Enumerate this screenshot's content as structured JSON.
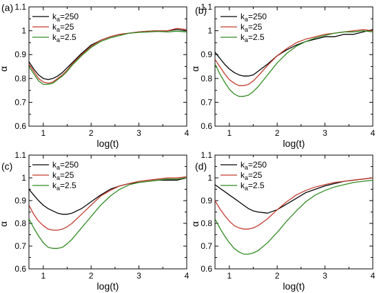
{
  "chart_data": [
    {
      "type": "line",
      "panel_label": "(a)",
      "xlabel": "log(t)",
      "ylabel": "α",
      "xlim": [
        0.7,
        4
      ],
      "ylim": [
        0.6,
        1.1
      ],
      "xticks": [
        "1",
        "2",
        "3",
        "4"
      ],
      "yticks": [
        "0.6",
        "0.7",
        "0.8",
        "0.9",
        "1",
        "1.1"
      ],
      "legend": "top-left",
      "series": [
        {
          "name_prefix": "k",
          "name_sub": "a",
          "name_suffix": "=250",
          "color": "#000000",
          "x": [
            0.7,
            0.8,
            0.9,
            1.0,
            1.1,
            1.2,
            1.3,
            1.4,
            1.5,
            1.6,
            1.8,
            2.0,
            2.2,
            2.4,
            2.6,
            2.8,
            3.0,
            3.2,
            3.4,
            3.6,
            3.8,
            4.0
          ],
          "y": [
            0.87,
            0.84,
            0.815,
            0.8,
            0.795,
            0.8,
            0.81,
            0.825,
            0.845,
            0.865,
            0.905,
            0.94,
            0.96,
            0.975,
            0.985,
            0.99,
            0.995,
            0.998,
            1.0,
            1.0,
            1.005,
            1.0
          ]
        },
        {
          "name_prefix": "k",
          "name_sub": "a",
          "name_suffix": "=25",
          "color": "#c0392b",
          "x": [
            0.7,
            0.8,
            0.9,
            1.0,
            1.1,
            1.2,
            1.3,
            1.4,
            1.5,
            1.6,
            1.8,
            2.0,
            2.2,
            2.4,
            2.6,
            2.8,
            3.0,
            3.2,
            3.4,
            3.6,
            3.8,
            4.0
          ],
          "y": [
            0.86,
            0.83,
            0.8,
            0.785,
            0.78,
            0.785,
            0.8,
            0.815,
            0.835,
            0.86,
            0.9,
            0.935,
            0.96,
            0.975,
            0.985,
            0.99,
            0.995,
            0.998,
            1.0,
            1.0,
            1.01,
            1.005
          ]
        },
        {
          "name_prefix": "k",
          "name_sub": "a",
          "name_suffix": "=2.5",
          "color": "#2e8b1f",
          "x": [
            0.7,
            0.8,
            0.9,
            1.0,
            1.1,
            1.2,
            1.3,
            1.4,
            1.5,
            1.6,
            1.8,
            2.0,
            2.2,
            2.4,
            2.6,
            2.8,
            3.0,
            3.2,
            3.4,
            3.6,
            3.8,
            4.0
          ],
          "y": [
            0.85,
            0.82,
            0.79,
            0.775,
            0.775,
            0.78,
            0.795,
            0.81,
            0.83,
            0.855,
            0.895,
            0.93,
            0.955,
            0.97,
            0.98,
            0.99,
            0.993,
            0.995,
            0.997,
            0.995,
            0.998,
            0.995
          ]
        }
      ]
    },
    {
      "type": "line",
      "panel_label": "(b)",
      "xlabel": "log(t)",
      "ylabel": "α",
      "xlim": [
        0.7,
        4
      ],
      "ylim": [
        0.6,
        1.1
      ],
      "xticks": [
        "1",
        "2",
        "3",
        "4"
      ],
      "yticks": [
        "0.6",
        "0.7",
        "0.8",
        "0.9",
        "1",
        "1.1"
      ],
      "legend": "top-right",
      "series": [
        {
          "name_prefix": "k",
          "name_sub": "a",
          "name_suffix": "=250",
          "color": "#000000",
          "x": [
            0.7,
            0.8,
            0.9,
            1.0,
            1.1,
            1.2,
            1.3,
            1.4,
            1.5,
            1.6,
            1.8,
            2.0,
            2.2,
            2.4,
            2.6,
            2.8,
            3.0,
            3.2,
            3.4,
            3.6,
            3.8,
            4.0
          ],
          "y": [
            0.91,
            0.885,
            0.86,
            0.84,
            0.825,
            0.815,
            0.81,
            0.81,
            0.815,
            0.83,
            0.86,
            0.895,
            0.92,
            0.94,
            0.955,
            0.965,
            0.975,
            0.975,
            0.985,
            0.985,
            0.995,
            1.005
          ]
        },
        {
          "name_prefix": "k",
          "name_sub": "a",
          "name_suffix": "=25",
          "color": "#c0392b",
          "x": [
            0.7,
            0.8,
            0.9,
            1.0,
            1.1,
            1.2,
            1.3,
            1.4,
            1.5,
            1.6,
            1.8,
            2.0,
            2.2,
            2.4,
            2.6,
            2.8,
            3.0,
            3.2,
            3.4,
            3.6,
            3.8,
            4.0
          ],
          "y": [
            0.88,
            0.85,
            0.82,
            0.795,
            0.78,
            0.77,
            0.77,
            0.775,
            0.79,
            0.81,
            0.855,
            0.895,
            0.925,
            0.95,
            0.965,
            0.975,
            0.985,
            0.99,
            0.995,
            1.0,
            1.005,
            1.0
          ]
        },
        {
          "name_prefix": "k",
          "name_sub": "a",
          "name_suffix": "=2.5",
          "color": "#2e8b1f",
          "x": [
            0.7,
            0.8,
            0.9,
            1.0,
            1.1,
            1.2,
            1.3,
            1.4,
            1.5,
            1.6,
            1.8,
            2.0,
            2.2,
            2.4,
            2.6,
            2.8,
            3.0,
            3.2,
            3.4,
            3.6,
            3.8,
            4.0
          ],
          "y": [
            0.86,
            0.82,
            0.785,
            0.755,
            0.735,
            0.725,
            0.725,
            0.73,
            0.745,
            0.765,
            0.815,
            0.865,
            0.905,
            0.935,
            0.955,
            0.97,
            0.98,
            0.99,
            0.995,
            0.995,
            1.0,
            0.995
          ]
        }
      ]
    },
    {
      "type": "line",
      "panel_label": "(c)",
      "xlabel": "log(t)",
      "ylabel": "α",
      "xlim": [
        0.7,
        4
      ],
      "ylim": [
        0.6,
        1.1
      ],
      "xticks": [
        "1",
        "2",
        "3",
        "4"
      ],
      "yticks": [
        "0.6",
        "0.7",
        "0.8",
        "0.9",
        "1",
        "1.1"
      ],
      "legend": "top-left",
      "series": [
        {
          "name_prefix": "k",
          "name_sub": "a",
          "name_suffix": "=250",
          "color": "#000000",
          "x": [
            0.7,
            0.8,
            0.9,
            1.0,
            1.1,
            1.2,
            1.3,
            1.4,
            1.5,
            1.6,
            1.8,
            2.0,
            2.2,
            2.4,
            2.6,
            2.8,
            3.0,
            3.2,
            3.4,
            3.6,
            3.8,
            4.0
          ],
          "y": [
            0.95,
            0.925,
            0.9,
            0.88,
            0.865,
            0.855,
            0.845,
            0.84,
            0.84,
            0.845,
            0.865,
            0.895,
            0.925,
            0.95,
            0.965,
            0.975,
            0.98,
            0.985,
            0.99,
            0.99,
            0.99,
            1.0
          ]
        },
        {
          "name_prefix": "k",
          "name_sub": "a",
          "name_suffix": "=25",
          "color": "#c0392b",
          "x": [
            0.7,
            0.8,
            0.9,
            1.0,
            1.1,
            1.2,
            1.3,
            1.4,
            1.5,
            1.6,
            1.8,
            2.0,
            2.2,
            2.4,
            2.6,
            2.8,
            3.0,
            3.2,
            3.4,
            3.6,
            3.8,
            4.0
          ],
          "y": [
            0.88,
            0.84,
            0.81,
            0.79,
            0.775,
            0.77,
            0.77,
            0.775,
            0.785,
            0.8,
            0.84,
            0.88,
            0.92,
            0.945,
            0.965,
            0.975,
            0.985,
            0.99,
            0.995,
            1.0,
            1.0,
            1.005
          ]
        },
        {
          "name_prefix": "k",
          "name_sub": "a",
          "name_suffix": "=2.5",
          "color": "#2e8b1f",
          "x": [
            0.7,
            0.8,
            0.9,
            1.0,
            1.1,
            1.2,
            1.3,
            1.4,
            1.5,
            1.6,
            1.8,
            2.0,
            2.2,
            2.4,
            2.6,
            2.8,
            3.0,
            3.2,
            3.4,
            3.6,
            3.8,
            4.0
          ],
          "y": [
            0.82,
            0.78,
            0.745,
            0.715,
            0.695,
            0.69,
            0.69,
            0.695,
            0.71,
            0.73,
            0.78,
            0.83,
            0.88,
            0.92,
            0.95,
            0.97,
            0.98,
            0.985,
            0.99,
            0.995,
            0.995,
            1.0
          ]
        }
      ]
    },
    {
      "type": "line",
      "panel_label": "(d)",
      "xlabel": "log(t)",
      "ylabel": "α",
      "xlim": [
        0.7,
        4
      ],
      "ylim": [
        0.6,
        1.1
      ],
      "xticks": [
        "1",
        "2",
        "3",
        "4"
      ],
      "yticks": [
        "0.6",
        "0.7",
        "0.8",
        "0.9",
        "1",
        "1.1"
      ],
      "legend": "top-right",
      "series": [
        {
          "name_prefix": "k",
          "name_sub": "a",
          "name_suffix": "=250",
          "color": "#000000",
          "x": [
            0.7,
            0.8,
            0.9,
            1.0,
            1.1,
            1.2,
            1.3,
            1.4,
            1.5,
            1.6,
            1.8,
            2.0,
            2.2,
            2.4,
            2.6,
            2.8,
            3.0,
            3.2,
            3.4,
            3.6,
            3.8,
            4.0
          ],
          "y": [
            0.97,
            0.955,
            0.94,
            0.925,
            0.91,
            0.895,
            0.88,
            0.865,
            0.855,
            0.85,
            0.845,
            0.86,
            0.885,
            0.91,
            0.935,
            0.95,
            0.965,
            0.975,
            0.985,
            0.99,
            0.995,
            1.0
          ]
        },
        {
          "name_prefix": "k",
          "name_sub": "a",
          "name_suffix": "=25",
          "color": "#c0392b",
          "x": [
            0.7,
            0.8,
            0.9,
            1.0,
            1.1,
            1.2,
            1.3,
            1.4,
            1.5,
            1.6,
            1.8,
            2.0,
            2.2,
            2.4,
            2.6,
            2.8,
            3.0,
            3.2,
            3.4,
            3.6,
            3.8,
            4.0
          ],
          "y": [
            0.9,
            0.865,
            0.835,
            0.81,
            0.79,
            0.78,
            0.775,
            0.775,
            0.78,
            0.79,
            0.82,
            0.86,
            0.895,
            0.925,
            0.945,
            0.96,
            0.97,
            0.98,
            0.985,
            0.99,
            0.995,
            1.0
          ]
        },
        {
          "name_prefix": "k",
          "name_sub": "a",
          "name_suffix": "=2.5",
          "color": "#2e8b1f",
          "x": [
            0.7,
            0.8,
            0.9,
            1.0,
            1.1,
            1.2,
            1.3,
            1.4,
            1.5,
            1.6,
            1.8,
            2.0,
            2.2,
            2.4,
            2.6,
            2.8,
            3.0,
            3.2,
            3.4,
            3.6,
            3.8,
            4.0
          ],
          "y": [
            0.82,
            0.78,
            0.745,
            0.715,
            0.69,
            0.675,
            0.665,
            0.665,
            0.67,
            0.68,
            0.715,
            0.76,
            0.81,
            0.855,
            0.895,
            0.925,
            0.945,
            0.96,
            0.97,
            0.98,
            0.985,
            0.99
          ]
        }
      ]
    }
  ]
}
